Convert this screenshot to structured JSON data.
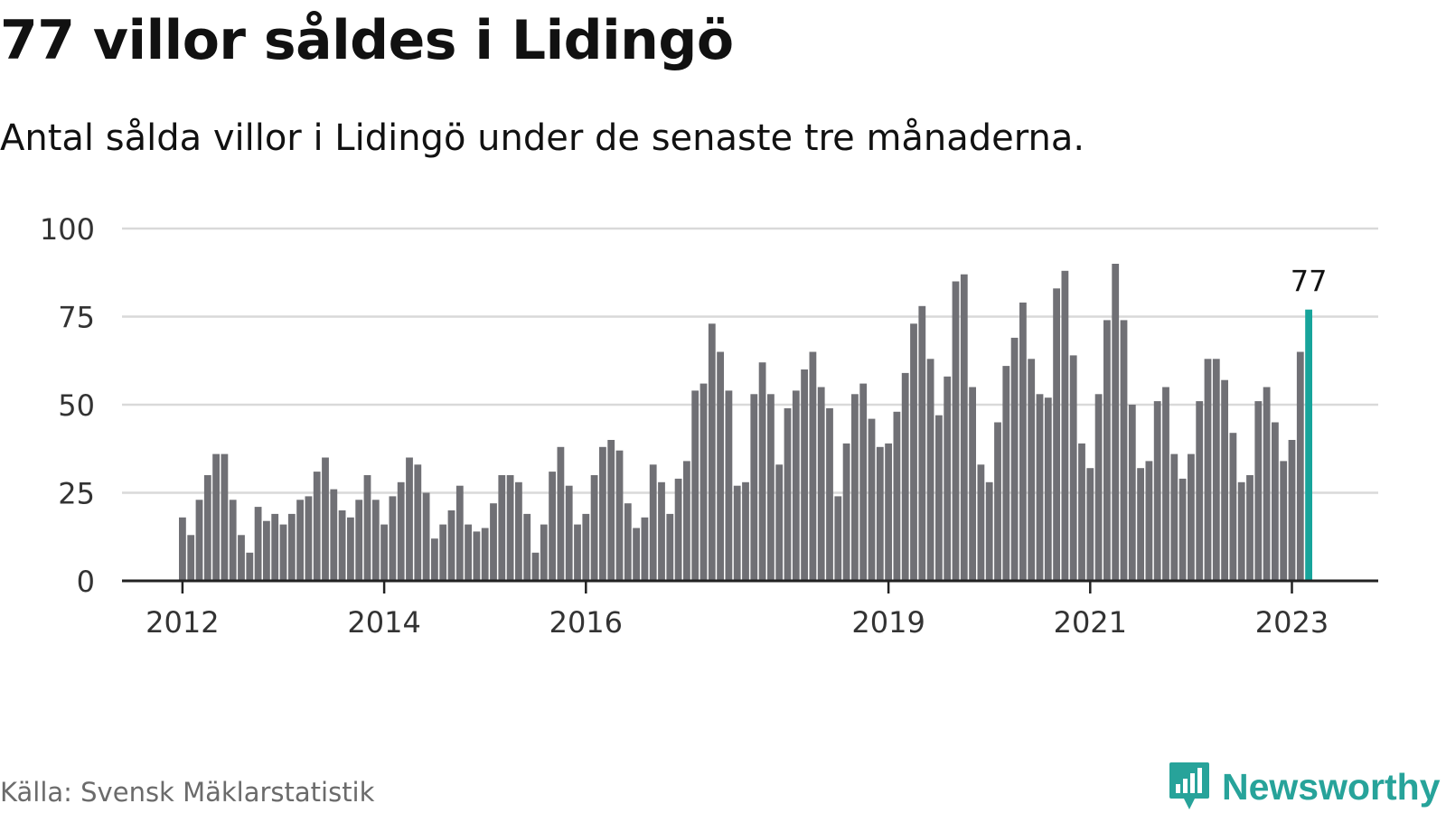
{
  "title": "77 villor såldes i Lidingö",
  "subtitle": "Antal sålda villor i Lidingö under de senaste tre månaderna.",
  "source": "Källa: Svensk Mäklarstatistik",
  "brand": {
    "name": "Newsworthy",
    "icon": "newsworthy-logo-icon",
    "color": "#27a39a"
  },
  "colors": {
    "bar": "#707075",
    "highlight": "#17a49b",
    "grid": "#d9d9d9",
    "axis": "#222222"
  },
  "chart_data": {
    "type": "bar",
    "title": "77 villor såldes i Lidingö",
    "xlabel": "",
    "ylabel": "",
    "ylim": [
      0,
      100
    ],
    "yticks": [
      0,
      25,
      50,
      75,
      100
    ],
    "x_tick_labels": [
      {
        "label": "2012",
        "index": 0
      },
      {
        "label": "2014",
        "index": 24
      },
      {
        "label": "2016",
        "index": 48
      },
      {
        "label": "2019",
        "index": 84
      },
      {
        "label": "2021",
        "index": 108
      },
      {
        "label": "2023",
        "index": 132
      }
    ],
    "values": [
      18,
      13,
      23,
      30,
      36,
      36,
      23,
      13,
      8,
      21,
      17,
      19,
      16,
      19,
      23,
      24,
      31,
      35,
      26,
      20,
      18,
      23,
      30,
      23,
      16,
      24,
      28,
      35,
      33,
      25,
      12,
      16,
      20,
      27,
      16,
      14,
      15,
      22,
      30,
      30,
      28,
      19,
      8,
      16,
      31,
      38,
      27,
      16,
      19,
      30,
      38,
      40,
      37,
      22,
      15,
      18,
      33,
      28,
      19,
      29,
      34,
      54,
      56,
      73,
      65,
      54,
      27,
      28,
      53,
      62,
      53,
      33,
      49,
      54,
      60,
      65,
      55,
      49,
      24,
      39,
      53,
      56,
      46,
      38,
      39,
      48,
      59,
      73,
      78,
      63,
      47,
      58,
      85,
      87,
      55,
      33,
      28,
      45,
      61,
      69,
      79,
      63,
      53,
      52,
      83,
      88,
      64,
      39,
      32,
      53,
      74,
      90,
      74,
      50,
      32,
      34,
      51,
      55,
      36,
      29,
      36,
      51,
      63,
      63,
      57,
      42,
      28,
      30,
      51,
      55,
      45,
      34,
      40,
      65,
      77
    ],
    "highlight_index": 134,
    "highlight_label": "77"
  }
}
